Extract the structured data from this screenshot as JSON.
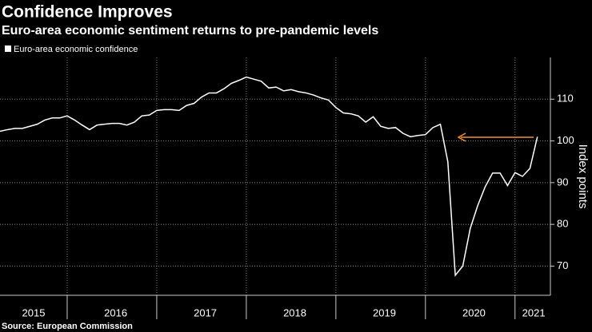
{
  "chart_data": {
    "type": "line",
    "title": "Confidence Improves",
    "subtitle": "Euro-area economic sentiment returns to pre-pandemic levels",
    "source": "Source: European Commission",
    "y_axis_label": "Index points",
    "categories": [
      null,
      null,
      null,
      null,
      "2015",
      null,
      null,
      null,
      null,
      null,
      null,
      null,
      null,
      null,
      null,
      "2016",
      null,
      null,
      null,
      null,
      null,
      null,
      null,
      null,
      null,
      null,
      null,
      "2017",
      null,
      null,
      null,
      null,
      null,
      null,
      null,
      null,
      null,
      null,
      null,
      "2018",
      null,
      null,
      null,
      null,
      null,
      null,
      null,
      null,
      null,
      null,
      null,
      "2019",
      null,
      null,
      null,
      null,
      null,
      null,
      null,
      null,
      null,
      null,
      null,
      "2020",
      null,
      null,
      null,
      null,
      null,
      null,
      null,
      "2021",
      null
    ],
    "series": [
      {
        "name": "Euro-area economic confidence",
        "color": "#ffffff",
        "values": [
          102.3,
          102.7,
          103,
          103,
          103.5,
          104,
          105,
          105.5,
          105.5,
          106,
          105,
          103.8,
          102.7,
          103.8,
          104,
          104.2,
          104.2,
          103.8,
          104.5,
          106,
          106.2,
          107.3,
          107.5,
          107.5,
          107.3,
          108.5,
          109,
          110.5,
          111.5,
          111.5,
          112.5,
          113.8,
          114.5,
          115.3,
          114.8,
          114.3,
          112.7,
          112.9,
          112,
          112.3,
          111.8,
          111.5,
          111,
          110.3,
          109.8,
          108,
          106.7,
          106.5,
          106,
          104.5,
          105.8,
          103.5,
          103,
          103.2,
          101.8,
          101,
          101.3,
          101.5,
          103.2,
          104,
          95,
          67.8,
          70,
          79,
          84.5,
          89,
          92.3,
          92.3,
          89.3,
          92.4,
          91.5,
          93.4,
          101
        ]
      }
    ],
    "ylim": [
      63,
      120
    ],
    "yticks": [
      70,
      80,
      90,
      100,
      110
    ],
    "grid": true,
    "year_boundaries": [
      9,
      21,
      33,
      45,
      57,
      69
    ]
  }
}
